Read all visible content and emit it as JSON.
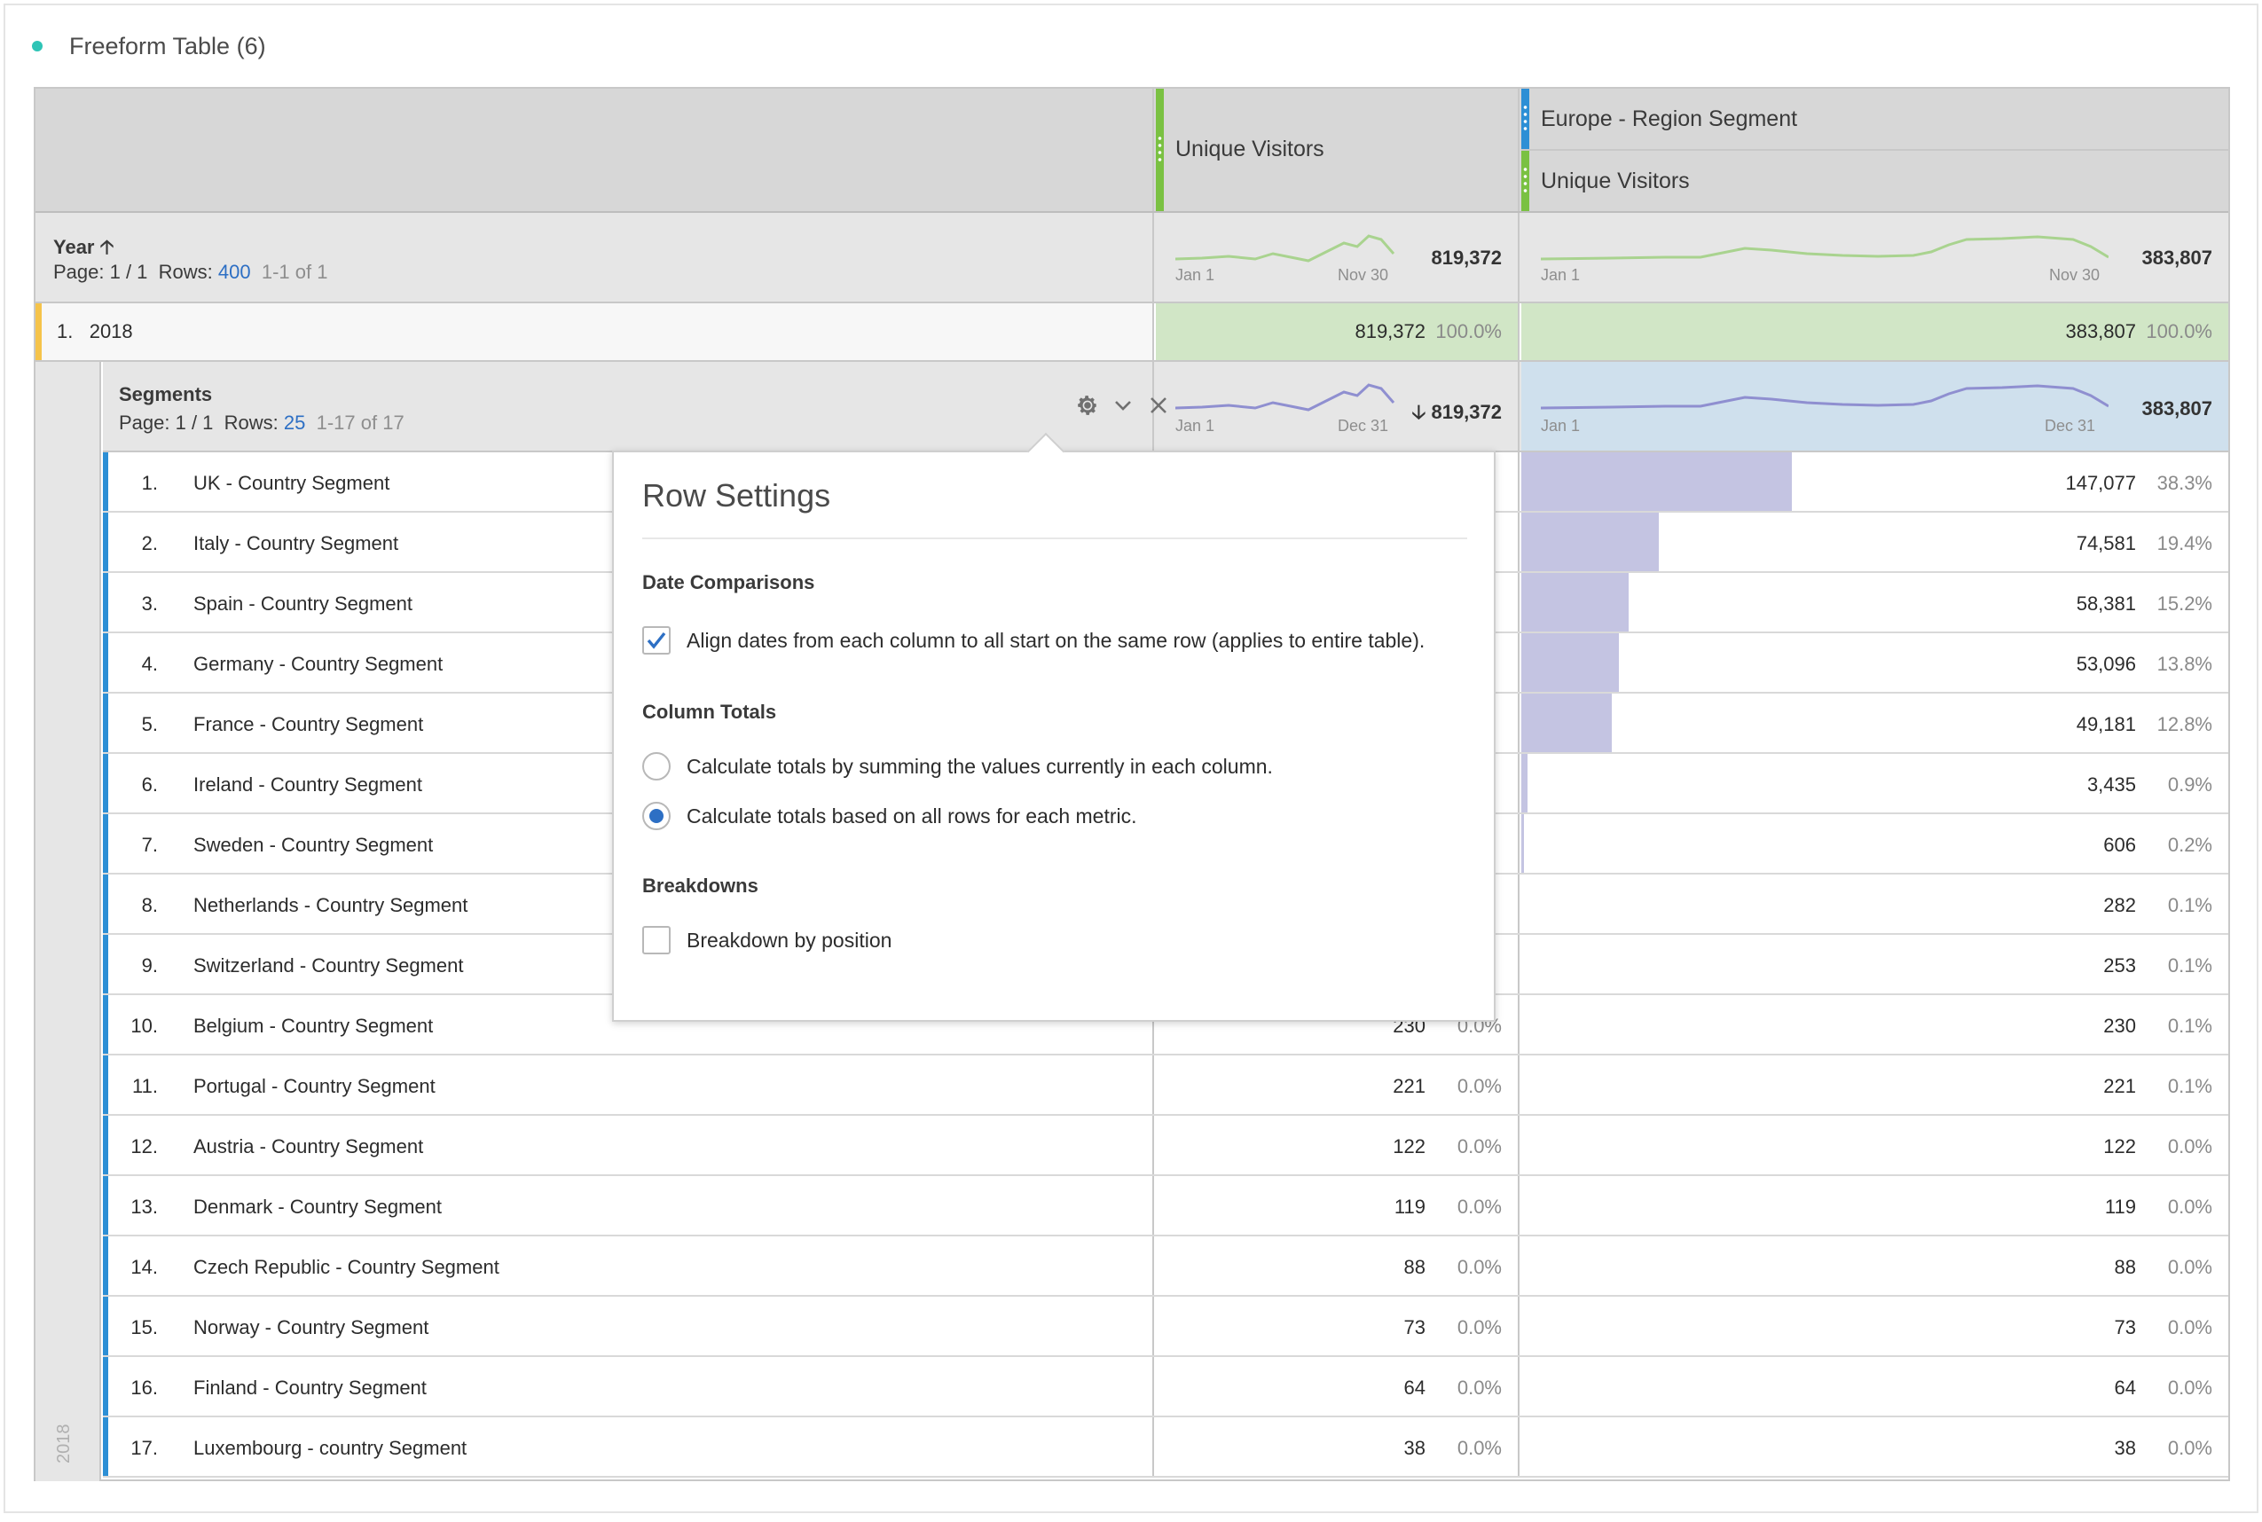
{
  "panel": {
    "title": "Freeform Table (6)"
  },
  "columns": {
    "col1": {
      "label": "Unique Visitors"
    },
    "col2": {
      "segment": "Europe - Region Segment",
      "label": "Unique Visitors"
    }
  },
  "total_row": {
    "dimension": "Year",
    "page_label": "Page: 1 / 1",
    "rows_label": "Rows:",
    "rows_value": "400",
    "range": "1-1 of 1",
    "col1": {
      "total": "819,372",
      "spark_start": "Jan 1",
      "spark_end": "Nov 30"
    },
    "col2": {
      "total": "383,807",
      "spark_start": "Jan 1",
      "spark_end": "Nov 30"
    }
  },
  "year_row": {
    "index": "1.",
    "label": "2018",
    "col1": {
      "value": "819,372",
      "pct": "100.0%"
    },
    "col2": {
      "value": "383,807",
      "pct": "100.0%"
    }
  },
  "breakdown": {
    "side_label": "2018",
    "dimension": "Segments",
    "page_label": "Page: 1 / 1",
    "rows_label": "Rows:",
    "rows_value": "25",
    "range": "1-17 of 17",
    "col1": {
      "total": "819,372",
      "spark_start": "Jan 1",
      "spark_end": "Dec 31"
    },
    "col2": {
      "total": "383,807",
      "spark_start": "Jan 1",
      "spark_end": "Dec 31"
    },
    "icons": [
      "gear-icon",
      "chevron-down-icon",
      "close-icon"
    ],
    "rows": [
      {
        "idx": "1.",
        "name": "UK - Country Segment",
        "v1": "",
        "p1": "",
        "v2": "147,077",
        "p2": "38.3%",
        "share": 0.383
      },
      {
        "idx": "2.",
        "name": "Italy - Country Segment",
        "v1": "",
        "p1": "",
        "v2": "74,581",
        "p2": "19.4%",
        "share": 0.194
      },
      {
        "idx": "3.",
        "name": "Spain - Country Segment",
        "v1": "",
        "p1": "",
        "v2": "58,381",
        "p2": "15.2%",
        "share": 0.152
      },
      {
        "idx": "4.",
        "name": "Germany - Country Segment",
        "v1": "",
        "p1": "",
        "v2": "53,096",
        "p2": "13.8%",
        "share": 0.138
      },
      {
        "idx": "5.",
        "name": "France - Country Segment",
        "v1": "",
        "p1": "",
        "v2": "49,181",
        "p2": "12.8%",
        "share": 0.128
      },
      {
        "idx": "6.",
        "name": "Ireland - Country Segment",
        "v1": "",
        "p1": "",
        "v2": "3,435",
        "p2": "0.9%",
        "share": 0.009
      },
      {
        "idx": "7.",
        "name": "Sweden - Country Segment",
        "v1": "",
        "p1": "",
        "v2": "606",
        "p2": "0.2%",
        "share": 0.002
      },
      {
        "idx": "8.",
        "name": "Netherlands - Country Segment",
        "v1": "",
        "p1": "",
        "v2": "282",
        "p2": "0.1%",
        "share": 0
      },
      {
        "idx": "9.",
        "name": "Switzerland - Country Segment",
        "v1": "",
        "p1": "",
        "v2": "253",
        "p2": "0.1%",
        "share": 0
      },
      {
        "idx": "10.",
        "name": "Belgium - Country Segment",
        "v1": "230",
        "p1": "0.0%",
        "v2": "230",
        "p2": "0.1%",
        "share": 0
      },
      {
        "idx": "11.",
        "name": "Portugal - Country Segment",
        "v1": "221",
        "p1": "0.0%",
        "v2": "221",
        "p2": "0.1%",
        "share": 0
      },
      {
        "idx": "12.",
        "name": "Austria - Country Segment",
        "v1": "122",
        "p1": "0.0%",
        "v2": "122",
        "p2": "0.0%",
        "share": 0
      },
      {
        "idx": "13.",
        "name": "Denmark - Country Segment",
        "v1": "119",
        "p1": "0.0%",
        "v2": "119",
        "p2": "0.0%",
        "share": 0
      },
      {
        "idx": "14.",
        "name": "Czech Republic - Country Segment",
        "v1": "88",
        "p1": "0.0%",
        "v2": "88",
        "p2": "0.0%",
        "share": 0
      },
      {
        "idx": "15.",
        "name": "Norway - Country Segment",
        "v1": "73",
        "p1": "0.0%",
        "v2": "73",
        "p2": "0.0%",
        "share": 0
      },
      {
        "idx": "16.",
        "name": "Finland - Country Segment",
        "v1": "64",
        "p1": "0.0%",
        "v2": "64",
        "p2": "0.0%",
        "share": 0
      },
      {
        "idx": "17.",
        "name": "Luxembourg - country Segment",
        "v1": "38",
        "p1": "0.0%",
        "v2": "38",
        "p2": "0.0%",
        "share": 0
      }
    ]
  },
  "row_settings": {
    "title": "Row Settings",
    "date_comparisons": {
      "heading": "Date Comparisons",
      "align_dates": {
        "label": "Align dates from each column to all start on the same row (applies to entire table).",
        "checked": true
      }
    },
    "column_totals": {
      "heading": "Column Totals",
      "options": [
        {
          "label": "Calculate totals by summing the values currently in each column.",
          "selected": false
        },
        {
          "label": "Calculate totals based on all rows for each metric.",
          "selected": true
        }
      ]
    },
    "breakdowns": {
      "heading": "Breakdowns",
      "by_position": {
        "label": "Breakdown by position",
        "checked": false
      }
    }
  },
  "colors": {
    "accent_blue": "#2d8fd5",
    "accent_green": "#7ac142",
    "accent_yellow": "#f5c34a",
    "link_blue": "#2d6fc4",
    "bar_purple": "#c4c4e2",
    "cell_green": "#d1e6c6",
    "cell_blue": "#cfe0ed",
    "spark_green": "#a9d38f",
    "spark_purple": "#8f8fd0"
  }
}
